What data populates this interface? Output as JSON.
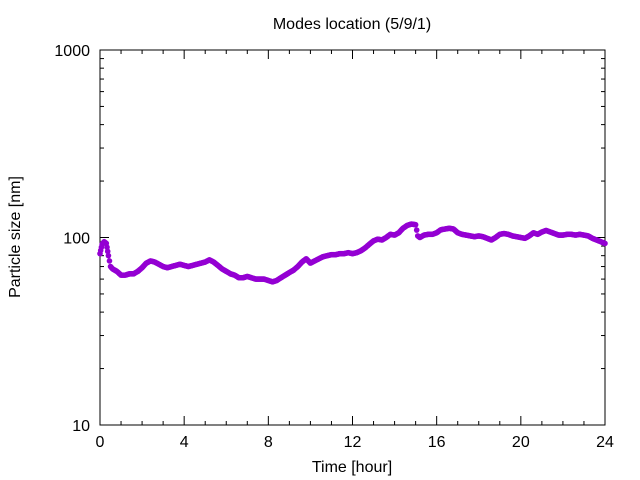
{
  "chart_data": {
    "type": "scatter",
    "title": "Modes location (5/9/1)",
    "xlabel": "Time [hour]",
    "ylabel": "Particle size [nm]",
    "xlim": [
      0,
      24
    ],
    "ylim": [
      10,
      1000
    ],
    "yscale": "log",
    "xticks": [
      "0",
      "4",
      "8",
      "12",
      "16",
      "20",
      "24"
    ],
    "yticks": [
      "10",
      "100",
      "1000"
    ],
    "grid": false,
    "marker_color": "#9400d3",
    "series": [
      {
        "points": [
          [
            0.0,
            82
          ],
          [
            0.1,
            92
          ],
          [
            0.2,
            95
          ],
          [
            0.3,
            93
          ],
          [
            0.4,
            80
          ],
          [
            0.5,
            70
          ],
          [
            0.6,
            68
          ],
          [
            0.8,
            66
          ],
          [
            1.0,
            63
          ],
          [
            1.2,
            63
          ],
          [
            1.4,
            64
          ],
          [
            1.6,
            64
          ],
          [
            1.8,
            66
          ],
          [
            2.0,
            69
          ],
          [
            2.2,
            73
          ],
          [
            2.4,
            75
          ],
          [
            2.6,
            74
          ],
          [
            2.8,
            72
          ],
          [
            3.0,
            70
          ],
          [
            3.2,
            69
          ],
          [
            3.4,
            70
          ],
          [
            3.6,
            71
          ],
          [
            3.8,
            72
          ],
          [
            4.0,
            71
          ],
          [
            4.2,
            70
          ],
          [
            4.4,
            71
          ],
          [
            4.6,
            72
          ],
          [
            4.8,
            73
          ],
          [
            5.0,
            74
          ],
          [
            5.2,
            76
          ],
          [
            5.4,
            74
          ],
          [
            5.6,
            71
          ],
          [
            5.8,
            68
          ],
          [
            6.0,
            66
          ],
          [
            6.2,
            64
          ],
          [
            6.4,
            63
          ],
          [
            6.6,
            61
          ],
          [
            6.8,
            61
          ],
          [
            7.0,
            62
          ],
          [
            7.2,
            61
          ],
          [
            7.4,
            60
          ],
          [
            7.6,
            60
          ],
          [
            7.8,
            60
          ],
          [
            8.0,
            59
          ],
          [
            8.2,
            58
          ],
          [
            8.4,
            59
          ],
          [
            8.6,
            61
          ],
          [
            8.8,
            63
          ],
          [
            9.0,
            65
          ],
          [
            9.2,
            67
          ],
          [
            9.4,
            70
          ],
          [
            9.6,
            74
          ],
          [
            9.8,
            77
          ],
          [
            10.0,
            73
          ],
          [
            10.2,
            75
          ],
          [
            10.4,
            77
          ],
          [
            10.6,
            79
          ],
          [
            10.8,
            80
          ],
          [
            11.0,
            81
          ],
          [
            11.2,
            81
          ],
          [
            11.4,
            82
          ],
          [
            11.6,
            82
          ],
          [
            11.8,
            83
          ],
          [
            12.0,
            82
          ],
          [
            12.2,
            83
          ],
          [
            12.4,
            85
          ],
          [
            12.6,
            88
          ],
          [
            12.8,
            92
          ],
          [
            13.0,
            96
          ],
          [
            13.2,
            98
          ],
          [
            13.4,
            97
          ],
          [
            13.6,
            100
          ],
          [
            13.8,
            104
          ],
          [
            14.0,
            103
          ],
          [
            14.2,
            106
          ],
          [
            14.4,
            112
          ],
          [
            14.6,
            116
          ],
          [
            14.8,
            118
          ],
          [
            15.0,
            117
          ],
          [
            15.1,
            102
          ],
          [
            15.2,
            100
          ],
          [
            15.4,
            103
          ],
          [
            15.6,
            104
          ],
          [
            15.8,
            104
          ],
          [
            16.0,
            106
          ],
          [
            16.2,
            110
          ],
          [
            16.4,
            111
          ],
          [
            16.6,
            112
          ],
          [
            16.8,
            111
          ],
          [
            17.0,
            106
          ],
          [
            17.2,
            104
          ],
          [
            17.4,
            103
          ],
          [
            17.6,
            102
          ],
          [
            17.8,
            101
          ],
          [
            18.0,
            102
          ],
          [
            18.2,
            101
          ],
          [
            18.4,
            99
          ],
          [
            18.6,
            97
          ],
          [
            18.8,
            100
          ],
          [
            19.0,
            104
          ],
          [
            19.2,
            105
          ],
          [
            19.4,
            104
          ],
          [
            19.6,
            102
          ],
          [
            19.8,
            101
          ],
          [
            20.0,
            100
          ],
          [
            20.2,
            99
          ],
          [
            20.4,
            102
          ],
          [
            20.6,
            106
          ],
          [
            20.8,
            104
          ],
          [
            21.0,
            107
          ],
          [
            21.2,
            109
          ],
          [
            21.4,
            107
          ],
          [
            21.6,
            105
          ],
          [
            21.8,
            103
          ],
          [
            22.0,
            103
          ],
          [
            22.2,
            104
          ],
          [
            22.4,
            104
          ],
          [
            22.6,
            103
          ],
          [
            22.8,
            104
          ],
          [
            23.0,
            103
          ],
          [
            23.2,
            102
          ],
          [
            23.4,
            99
          ],
          [
            23.6,
            97
          ],
          [
            23.8,
            95
          ],
          [
            24.0,
            93
          ]
        ]
      }
    ]
  }
}
